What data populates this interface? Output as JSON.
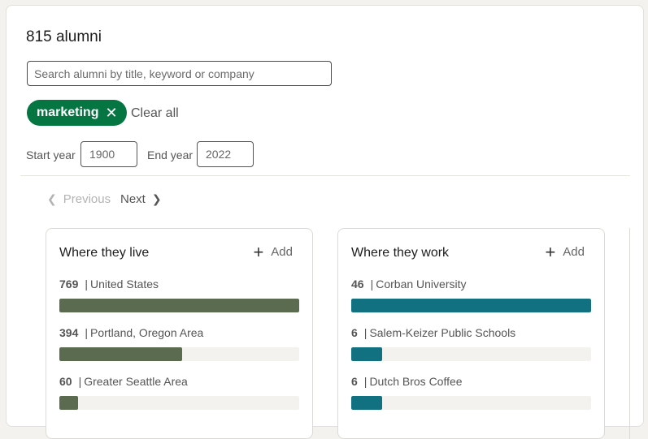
{
  "header": {
    "title": "815 alumni"
  },
  "search": {
    "placeholder": "Search alumni by title, keyword or company",
    "value": ""
  },
  "filters": {
    "active": [
      "marketing"
    ],
    "clear_label": "Clear all"
  },
  "years": {
    "start_label": "Start year",
    "start_value": "1900",
    "end_label": "End year",
    "end_value": "2022"
  },
  "pagination": {
    "prev_label": "Previous",
    "next_label": "Next"
  },
  "colors": {
    "brand": "#057642",
    "live_bar": "#5b6b4f",
    "work_bar": "#127181"
  },
  "cards": [
    {
      "title": "Where they live",
      "add_label": "Add",
      "bar_color": "#5b6b4f",
      "rows": [
        {
          "count": "769",
          "label": "United States",
          "fraction": 1.0
        },
        {
          "count": "394",
          "label": "Portland, Oregon Area",
          "fraction": 0.512
        },
        {
          "count": "60",
          "label": "Greater Seattle Area",
          "fraction": 0.078
        }
      ]
    },
    {
      "title": "Where they work",
      "add_label": "Add",
      "bar_color": "#127181",
      "rows": [
        {
          "count": "46",
          "label": "Corban University",
          "fraction": 1.0
        },
        {
          "count": "6",
          "label": "Salem-Keizer Public Schools",
          "fraction": 0.13
        },
        {
          "count": "6",
          "label": "Dutch Bros Coffee",
          "fraction": 0.13
        }
      ]
    }
  ]
}
